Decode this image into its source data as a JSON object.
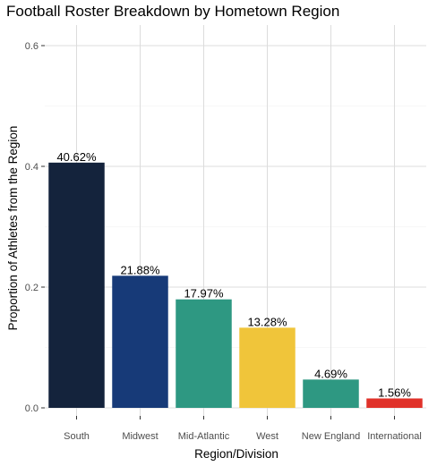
{
  "chart_data": {
    "type": "bar",
    "title": "Football Roster Breakdown by Hometown Region",
    "xlabel": "Region/Division",
    "ylabel": "Proportion of Athletes from the Region",
    "categories": [
      "South",
      "Midwest",
      "Mid-Atlantic",
      "West",
      "New England",
      "International"
    ],
    "values": [
      0.4062,
      0.2188,
      0.1797,
      0.1328,
      0.0469,
      0.0156
    ],
    "data_labels": [
      "40.62%",
      "21.88%",
      "17.97%",
      "13.28%",
      "4.69%",
      "1.56%"
    ],
    "colors": [
      "#14233c",
      "#173a78",
      "#2e9882",
      "#f0c53a",
      "#2e9882",
      "#e0322a"
    ],
    "ylim": [
      0,
      0.63
    ],
    "yticks": [
      0.0,
      0.2,
      0.4,
      0.6
    ],
    "ytick_labels": [
      "0.0",
      "0.2",
      "0.4",
      "0.6"
    ],
    "grid": true,
    "legend": false,
    "background": "#ffffff"
  }
}
